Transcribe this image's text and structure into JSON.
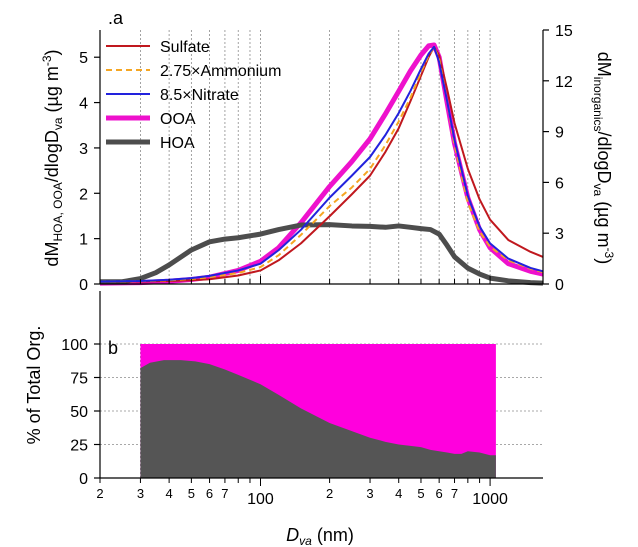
{
  "figure": {
    "panel_a_label": ".a",
    "panel_b_label": "b"
  },
  "chart_data": [
    {
      "type": "line",
      "panel": "a",
      "x_scale": "log",
      "xlim": [
        20,
        1700
      ],
      "ylim_left": [
        0,
        5.6
      ],
      "ylim_right": [
        0,
        15
      ],
      "ylabel_left": {
        "prefix": "dM",
        "sub": "HOA, OOA",
        "suffix": "/dlogD",
        "sub2": "va",
        "units": " (µg m",
        "sup": "-3",
        "end": ")"
      },
      "ylabel_right": {
        "prefix": "dM",
        "sub": "inorganics",
        "suffix": "/dlogD",
        "sub2": "va",
        "units": " (µg m",
        "sup": "-3",
        "end": ")"
      },
      "yticks_left": [
        "0",
        "1",
        "2",
        "3",
        "4",
        "5"
      ],
      "yticks_right": [
        "0",
        "3",
        "6",
        "9",
        "12",
        "15"
      ],
      "legend_position": "top-left",
      "series": [
        {
          "name": "Sulfate",
          "axis": "right",
          "color": "#c0181e",
          "dash": false,
          "width": 2,
          "x": [
            20,
            30,
            40,
            50,
            60,
            80,
            100,
            120,
            150,
            200,
            250,
            300,
            350,
            400,
            450,
            500,
            540,
            570,
            600,
            650,
            700,
            800,
            900,
            1000,
            1200,
            1500,
            1700
          ],
          "y": [
            0.15,
            0.15,
            0.18,
            0.22,
            0.28,
            0.5,
            0.8,
            1.4,
            2.4,
            4.0,
            5.3,
            6.4,
            7.8,
            9.2,
            10.8,
            12.3,
            13.4,
            14.0,
            13.5,
            11.5,
            9.5,
            6.8,
            5.0,
            3.8,
            2.6,
            1.9,
            1.6
          ]
        },
        {
          "name": "2.75×Ammonium",
          "axis": "right",
          "color": "#f5a623",
          "dash": true,
          "width": 2,
          "x": [
            20,
            30,
            40,
            50,
            60,
            80,
            100,
            120,
            150,
            200,
            250,
            300,
            350,
            400,
            450,
            500,
            540,
            570,
            600,
            650,
            700,
            800,
            900,
            1000,
            1200,
            1500,
            1700
          ],
          "y": [
            0.15,
            0.17,
            0.22,
            0.3,
            0.4,
            0.65,
            1.0,
            1.7,
            2.9,
            4.6,
            5.7,
            6.8,
            8.2,
            9.6,
            11.0,
            12.5,
            13.5,
            14.0,
            13.3,
            10.8,
            8.2,
            4.8,
            3.1,
            2.2,
            1.4,
            0.9,
            0.7
          ]
        },
        {
          "name": "8.5×Nitrate",
          "axis": "right",
          "color": "#2222dd",
          "dash": false,
          "width": 2,
          "x": [
            20,
            30,
            40,
            50,
            60,
            80,
            100,
            120,
            150,
            200,
            250,
            300,
            350,
            400,
            450,
            500,
            540,
            570,
            600,
            650,
            700,
            800,
            900,
            1000,
            1200,
            1500,
            1700
          ],
          "y": [
            0.15,
            0.18,
            0.25,
            0.35,
            0.48,
            0.8,
            1.2,
            2.0,
            3.2,
            5.1,
            6.4,
            7.5,
            8.8,
            10.1,
            11.4,
            12.7,
            13.6,
            14.0,
            13.1,
            10.8,
            8.5,
            5.2,
            3.4,
            2.4,
            1.5,
            0.95,
            0.75
          ]
        },
        {
          "name": "OOA",
          "axis": "left",
          "color": "#ee11cc",
          "dash": false,
          "width": 5,
          "x": [
            20,
            30,
            40,
            50,
            60,
            80,
            100,
            120,
            150,
            200,
            250,
            300,
            350,
            400,
            450,
            500,
            540,
            570,
            600,
            650,
            700,
            800,
            900,
            1000,
            1200,
            1500,
            1700
          ],
          "y": [
            0.02,
            0.03,
            0.06,
            0.1,
            0.15,
            0.3,
            0.5,
            0.8,
            1.35,
            2.15,
            2.7,
            3.2,
            3.75,
            4.25,
            4.7,
            5.05,
            5.25,
            5.27,
            5.0,
            4.0,
            3.1,
            1.9,
            1.2,
            0.8,
            0.45,
            0.28,
            0.22
          ]
        },
        {
          "name": "HOA",
          "axis": "left",
          "color": "#4d4d4d",
          "dash": false,
          "width": 5,
          "x": [
            20,
            25,
            30,
            35,
            40,
            50,
            60,
            70,
            80,
            100,
            120,
            150,
            200,
            250,
            300,
            350,
            400,
            450,
            500,
            550,
            600,
            650,
            700,
            800,
            900,
            1000,
            1200,
            1500,
            1700
          ],
          "y": [
            0.05,
            0.05,
            0.12,
            0.25,
            0.42,
            0.75,
            0.93,
            0.99,
            1.02,
            1.1,
            1.2,
            1.3,
            1.31,
            1.28,
            1.27,
            1.25,
            1.28,
            1.25,
            1.22,
            1.2,
            1.1,
            0.85,
            0.6,
            0.35,
            0.22,
            0.13,
            0.07,
            0.03,
            0.02
          ]
        }
      ]
    },
    {
      "type": "area",
      "panel": "b",
      "x_scale": "log",
      "xlim": [
        20,
        1700
      ],
      "ylim": [
        0,
        100
      ],
      "ylabel": "% of Total Org.",
      "xlabel": {
        "prefix": "D",
        "sub": "va",
        "suffix": " (nm)"
      },
      "yticks": [
        "0",
        "25",
        "50",
        "75",
        "100"
      ],
      "xtick_major": [
        "100",
        "1000"
      ],
      "xtick_minor": [
        "2",
        "3",
        "4",
        "5",
        "6",
        "7",
        "2",
        "3",
        "4",
        "5",
        "6",
        "7"
      ],
      "series": [
        {
          "name": "OOA",
          "color": "#ff00dd",
          "x": [
            30,
            1060
          ],
          "y": [
            100,
            100
          ]
        },
        {
          "name": "HOA",
          "color": "#555555",
          "x": [
            30,
            33,
            38,
            45,
            52,
            60,
            70,
            80,
            100,
            120,
            150,
            200,
            250,
            300,
            350,
            400,
            450,
            500,
            550,
            600,
            650,
            700,
            750,
            800,
            900,
            1000,
            1060
          ],
          "y": [
            82,
            86,
            88,
            88,
            87,
            85,
            81,
            77,
            70,
            62,
            52,
            41,
            35,
            30,
            27,
            25,
            24,
            23,
            21,
            20,
            19,
            18,
            18,
            20,
            19,
            17,
            17
          ]
        }
      ]
    }
  ]
}
